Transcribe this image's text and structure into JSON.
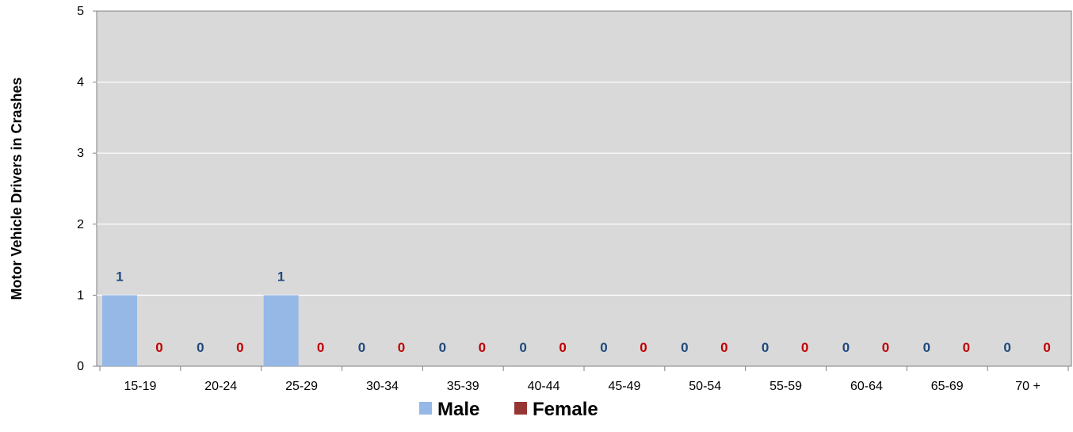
{
  "chart_data": {
    "type": "bar",
    "title": "",
    "xlabel": "",
    "ylabel": "Motor Vehicle Drivers in Crashes",
    "categories": [
      "15-19",
      "20-24",
      "25-29",
      "30-34",
      "35-39",
      "40-44",
      "45-49",
      "50-54",
      "55-59",
      "60-64",
      "65-69",
      "70 +"
    ],
    "series": [
      {
        "name": "Male",
        "values": [
          1,
          0,
          1,
          0,
          0,
          0,
          0,
          0,
          0,
          0,
          0,
          0
        ],
        "color": "#95B8E6",
        "label_color": "#1F497D"
      },
      {
        "name": "Female",
        "values": [
          0,
          0,
          0,
          0,
          0,
          0,
          0,
          0,
          0,
          0,
          0,
          0
        ],
        "color": "#963634",
        "label_color": "#C00000"
      }
    ],
    "ylim": [
      0,
      5
    ],
    "yticks": [
      0,
      1,
      2,
      3,
      4,
      5
    ],
    "grid": true,
    "legend_position": "bottom",
    "plot_background": "#D9D9D9"
  }
}
